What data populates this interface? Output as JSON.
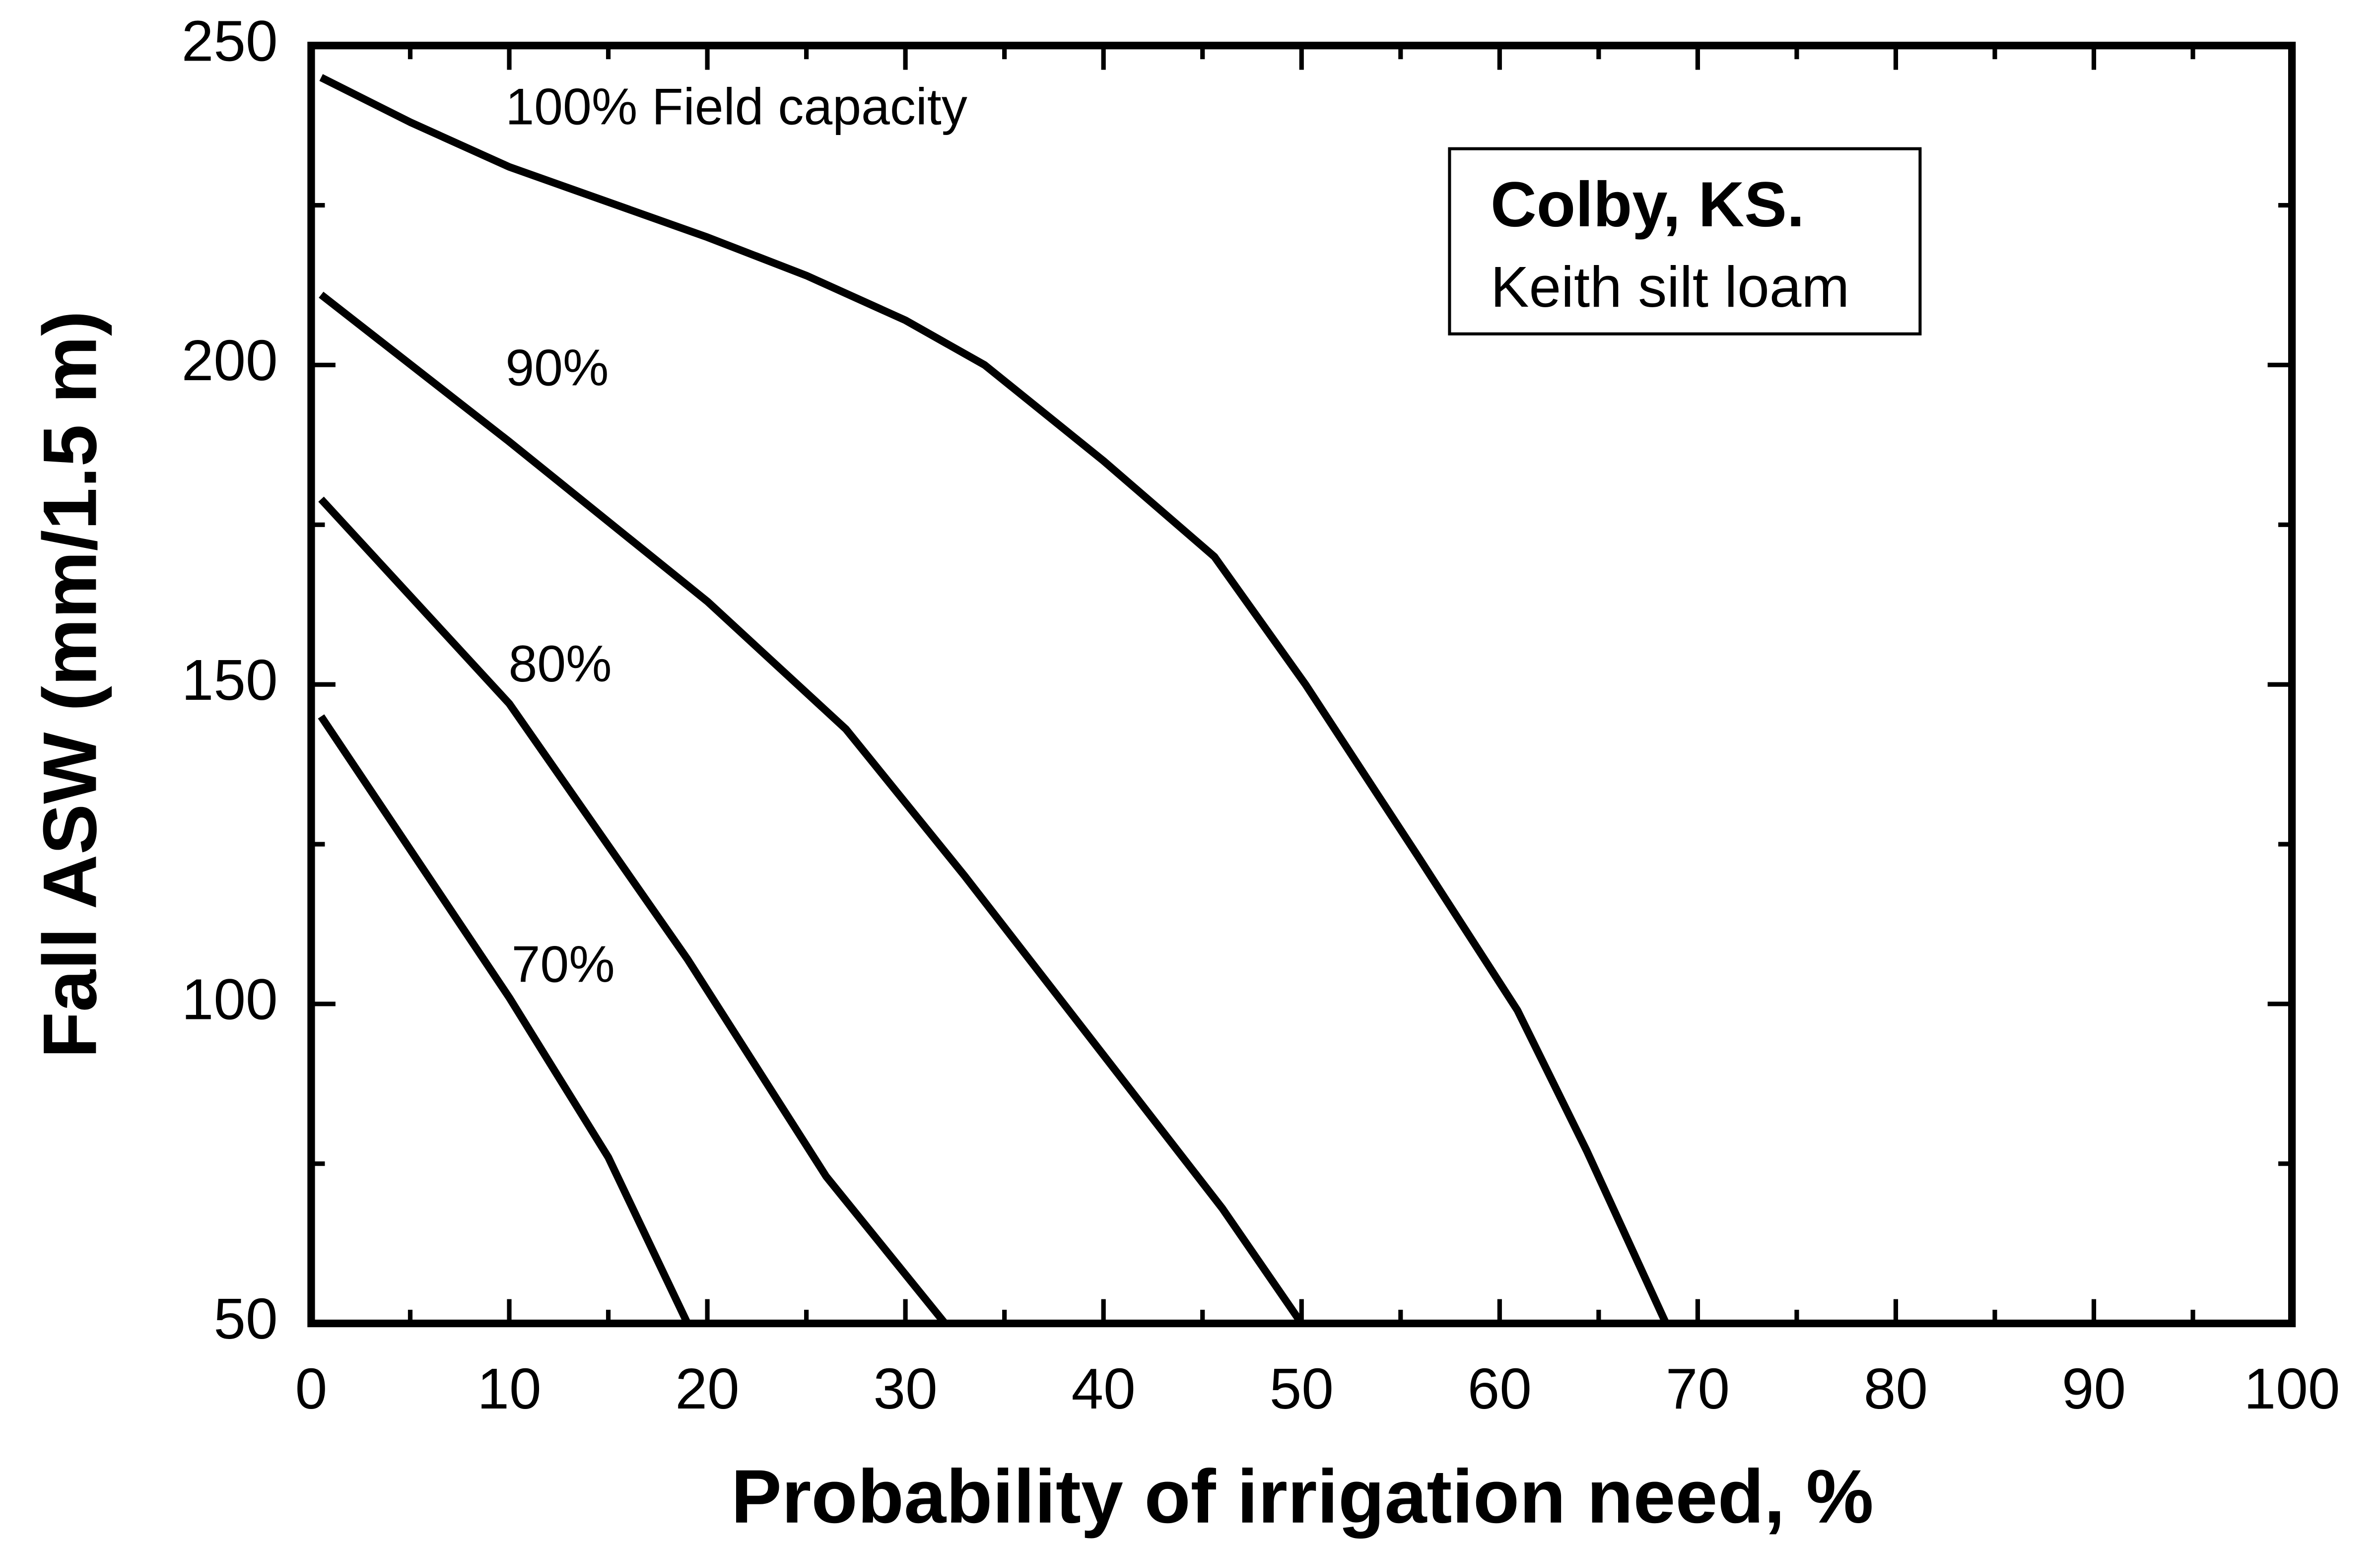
{
  "chart_data": {
    "type": "line",
    "xlabel": "Probability of irrigation need, %",
    "ylabel": "Fall ASW (mm/1.5 m)",
    "annotations": [
      "Colby, KS.",
      "Keith silt loam"
    ],
    "xlim": [
      0,
      100
    ],
    "xticks": [
      0,
      10,
      20,
      30,
      40,
      50,
      60,
      70,
      80,
      90,
      100
    ],
    "ylim": [
      50,
      250
    ],
    "yticks": [
      50,
      100,
      150,
      200,
      250
    ],
    "grid": false,
    "series": [
      {
        "name": "100% Field capacity",
        "color": "#000000",
        "x": [
          0.5,
          5,
          10,
          20,
          25,
          30,
          34,
          40,
          45.6,
          50.2,
          55.9,
          60.9,
          64.4,
          68.4
        ],
        "values": [
          245,
          238,
          231,
          220,
          214,
          207,
          200,
          185,
          170,
          150,
          123,
          99,
          77,
          50
        ]
      },
      {
        "name": "90%",
        "color": "#000000",
        "x": [
          0.5,
          10,
          20,
          27,
          33,
          40,
          46,
          50
        ],
        "values": [
          211,
          188,
          163,
          143,
          120,
          92,
          68,
          50
        ]
      },
      {
        "name": "80%",
        "color": "#000000",
        "x": [
          0.5,
          10,
          19,
          26,
          32
        ],
        "values": [
          179,
          147,
          107,
          73,
          50
        ]
      },
      {
        "name": "70%",
        "color": "#000000",
        "x": [
          0.5,
          10,
          15,
          19
        ],
        "values": [
          145,
          101,
          76,
          50
        ]
      }
    ]
  }
}
